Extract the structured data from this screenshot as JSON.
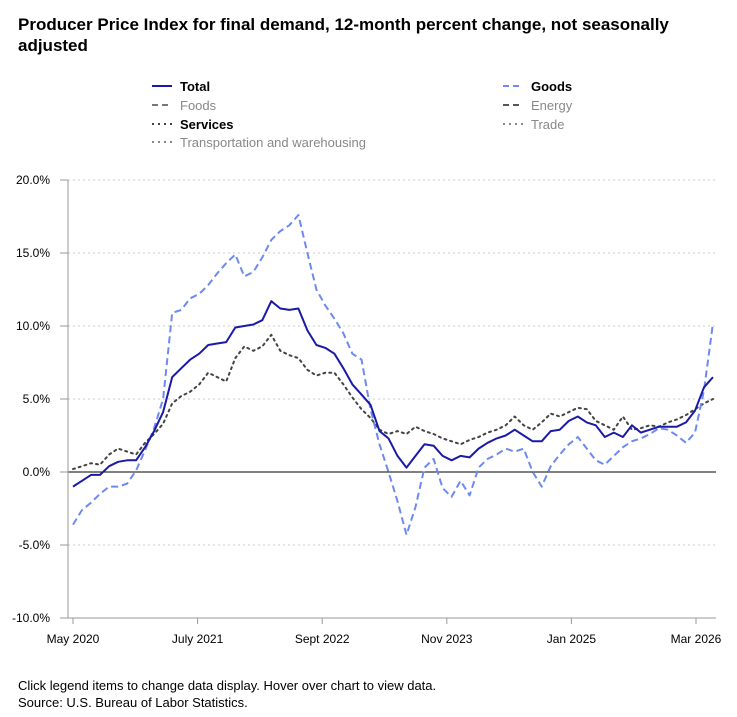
{
  "title": "Producer Price Index for final demand, 12-month percent change, not seasonally adjusted",
  "footer": {
    "note": "Click legend items to change data display. Hover over chart to view data.",
    "source": "Source: U.S. Bureau of Labor Statistics."
  },
  "legend": [
    {
      "name": "Total",
      "active": true,
      "color": "#1a1aa6",
      "style": "solid"
    },
    {
      "name": "Goods",
      "active": true,
      "color": "#6d8af0",
      "style": "dashed"
    },
    {
      "name": "Foods",
      "active": false,
      "color": "#777777",
      "style": "dashed"
    },
    {
      "name": "Energy",
      "active": false,
      "color": "#555555",
      "style": "dashed"
    },
    {
      "name": "Services",
      "active": true,
      "color": "#444444",
      "style": "dotted"
    },
    {
      "name": "Trade",
      "active": false,
      "color": "#888888",
      "style": "dotted"
    },
    {
      "name": "Transportation and warehousing",
      "active": false,
      "color": "#888888",
      "style": "dotted"
    }
  ],
  "chart_data": {
    "type": "line",
    "x_labels": [
      "May 2020",
      "July 2021",
      "Sept 2022",
      "Nov 2023",
      "Jan 2025",
      "Mar 2026"
    ],
    "x_start": "May 2020",
    "x_end": "Mar 2026",
    "ylim": [
      -10,
      20
    ],
    "yticks": [
      "20.0%",
      "15.0%",
      "10.0%",
      "5.0%",
      "0.0%",
      "-5.0%",
      "-10.0%"
    ],
    "ytick_values": [
      20,
      15,
      10,
      5,
      0,
      -5,
      -10
    ],
    "grid": true,
    "legend_position": "top",
    "series": [
      {
        "name": "Total",
        "color": "#1a1aa6",
        "style": "solid",
        "values": [
          -1.0,
          -0.6,
          -0.2,
          -0.2,
          0.4,
          0.7,
          0.8,
          0.8,
          1.7,
          2.8,
          4.1,
          6.5,
          7.1,
          7.7,
          8.1,
          8.7,
          8.8,
          8.9,
          9.9,
          10.0,
          10.1,
          10.4,
          11.7,
          11.2,
          11.1,
          11.2,
          9.7,
          8.7,
          8.5,
          8.1,
          7.1,
          6.0,
          5.3,
          4.6,
          2.8,
          2.3,
          1.1,
          0.3,
          1.1,
          1.9,
          1.8,
          1.1,
          0.8,
          1.1,
          1.0,
          1.6,
          2.0,
          2.3,
          2.5,
          2.9,
          2.5,
          2.1,
          2.1,
          2.8,
          2.9,
          3.5,
          3.8,
          3.4,
          3.2,
          2.4,
          2.7,
          2.4,
          3.2,
          2.7,
          2.9,
          3.1,
          3.1,
          3.1,
          3.4,
          4.2,
          5.8,
          6.5
        ]
      },
      {
        "name": "Goods",
        "color": "#6d8af0",
        "style": "dashed",
        "values": [
          -3.6,
          -2.6,
          -2.1,
          -1.5,
          -1.0,
          -1.0,
          -0.8,
          0.1,
          1.5,
          3.0,
          5.0,
          10.9,
          11.1,
          11.9,
          12.2,
          12.8,
          13.6,
          14.3,
          14.9,
          13.4,
          13.7,
          14.7,
          15.9,
          16.5,
          16.9,
          17.6,
          15.0,
          12.5,
          11.4,
          10.5,
          9.5,
          8.1,
          7.7,
          4.3,
          1.9,
          0.0,
          -2.0,
          -4.3,
          -2.4,
          0.3,
          0.9,
          -1.1,
          -1.7,
          -0.6,
          -1.6,
          0.3,
          0.9,
          1.2,
          1.6,
          1.4,
          1.6,
          0.0,
          -1.0,
          0.4,
          1.2,
          1.9,
          2.4,
          1.6,
          0.8,
          0.5,
          1.1,
          1.7,
          2.1,
          2.3,
          2.6,
          3.0,
          2.9,
          2.5,
          2.0,
          2.7,
          5.6,
          10.2
        ]
      },
      {
        "name": "Services",
        "color": "#444444",
        "style": "dotted",
        "values": [
          0.2,
          0.4,
          0.6,
          0.5,
          1.2,
          1.6,
          1.4,
          1.2,
          2.0,
          2.6,
          3.3,
          4.7,
          5.2,
          5.5,
          6.0,
          6.8,
          6.5,
          6.2,
          7.8,
          8.6,
          8.3,
          8.6,
          9.4,
          8.3,
          8.0,
          7.8,
          7.0,
          6.6,
          6.8,
          6.8,
          6.0,
          5.1,
          4.3,
          3.7,
          2.9,
          2.6,
          2.8,
          2.6,
          3.1,
          2.8,
          2.6,
          2.3,
          2.1,
          1.9,
          2.2,
          2.4,
          2.7,
          2.9,
          3.2,
          3.8,
          3.2,
          2.9,
          3.4,
          4.0,
          3.8,
          4.1,
          4.4,
          4.3,
          3.5,
          3.2,
          2.9,
          3.8,
          2.9,
          3.0,
          3.2,
          3.1,
          3.4,
          3.6,
          3.9,
          4.3,
          4.7,
          5.0
        ]
      }
    ]
  }
}
